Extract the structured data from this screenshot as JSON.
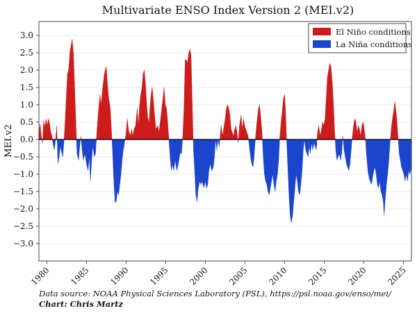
{
  "chart_data": {
    "type": "area",
    "title": "Multivariate ENSO Index Version 2 (MEI.v2)",
    "ylabel": "MEI.v2",
    "xlabel": "",
    "xlim": [
      1979,
      2026
    ],
    "ylim": [
      -3.5,
      3.4
    ],
    "yticks": [
      3.0,
      2.5,
      2.0,
      1.5,
      1.0,
      0.5,
      0.0,
      -0.5,
      -1.0,
      -1.5,
      -2.0,
      -2.5,
      -3.0
    ],
    "ytick_labels": [
      "3.0",
      "2.5",
      "2.0",
      "1.5",
      "1.0",
      "0.5",
      "0.0",
      "−0.5",
      "−1.0",
      "−1.5",
      "−2.0",
      "−2.5",
      "−3.0"
    ],
    "xticks": [
      1980,
      1985,
      1990,
      1995,
      2000,
      2005,
      2010,
      2015,
      2020,
      2025
    ],
    "xtick_labels": [
      "1980",
      "1985",
      "1990",
      "1995",
      "2000",
      "2005",
      "2010",
      "2015",
      "2020",
      "2025"
    ],
    "grid": "horizontal",
    "legend_position": "top-right",
    "series": [
      {
        "name": "El Niño conditions",
        "color": "#cc1c1c"
      },
      {
        "name": "La Niña conditions",
        "color": "#1b45cc"
      }
    ],
    "points": [
      [
        1979.0,
        0.2
      ],
      [
        1979.15,
        0.45
      ],
      [
        1979.3,
        0.1
      ],
      [
        1979.45,
        -0.1
      ],
      [
        1979.6,
        0.55
      ],
      [
        1979.75,
        0.35
      ],
      [
        1979.9,
        0.6
      ],
      [
        1980.05,
        0.4
      ],
      [
        1980.2,
        0.6
      ],
      [
        1980.35,
        0.45
      ],
      [
        1980.5,
        0.2
      ],
      [
        1980.65,
        0.1
      ],
      [
        1980.8,
        -0.15
      ],
      [
        1980.95,
        -0.3
      ],
      [
        1981.1,
        0.0
      ],
      [
        1981.25,
        0.4
      ],
      [
        1981.4,
        -0.7
      ],
      [
        1981.55,
        -0.5
      ],
      [
        1981.7,
        -0.2
      ],
      [
        1981.85,
        -0.35
      ],
      [
        1982.0,
        -0.5
      ],
      [
        1982.15,
        -0.1
      ],
      [
        1982.3,
        0.5
      ],
      [
        1982.45,
        1.2
      ],
      [
        1982.6,
        1.9
      ],
      [
        1982.75,
        2.0
      ],
      [
        1982.9,
        2.5
      ],
      [
        1983.05,
        2.7
      ],
      [
        1983.2,
        2.9
      ],
      [
        1983.35,
        2.5
      ],
      [
        1983.5,
        1.6
      ],
      [
        1983.65,
        0.6
      ],
      [
        1983.8,
        -0.4
      ],
      [
        1984.0,
        -0.6
      ],
      [
        1984.15,
        -0.2
      ],
      [
        1984.3,
        0.1
      ],
      [
        1984.45,
        -0.3
      ],
      [
        1984.6,
        -0.6
      ],
      [
        1984.8,
        -0.4
      ],
      [
        1985.0,
        -0.7
      ],
      [
        1985.2,
        -0.9
      ],
      [
        1985.35,
        -0.5
      ],
      [
        1985.5,
        -1.2
      ],
      [
        1985.65,
        -0.6
      ],
      [
        1985.8,
        -0.2
      ],
      [
        1986.0,
        -0.5
      ],
      [
        1986.15,
        -0.4
      ],
      [
        1986.3,
        0.2
      ],
      [
        1986.5,
        0.8
      ],
      [
        1986.7,
        1.3
      ],
      [
        1986.85,
        1.0
      ],
      [
        1987.0,
        1.4
      ],
      [
        1987.2,
        1.8
      ],
      [
        1987.35,
        2.0
      ],
      [
        1987.5,
        2.1
      ],
      [
        1987.65,
        1.6
      ],
      [
        1987.8,
        1.2
      ],
      [
        1988.0,
        0.9
      ],
      [
        1988.15,
        0.3
      ],
      [
        1988.3,
        -0.4
      ],
      [
        1988.45,
        -1.2
      ],
      [
        1988.6,
        -1.8
      ],
      [
        1988.75,
        -1.8
      ],
      [
        1988.9,
        -1.5
      ],
      [
        1989.05,
        -1.6
      ],
      [
        1989.2,
        -1.3
      ],
      [
        1989.35,
        -1.0
      ],
      [
        1989.5,
        -0.6
      ],
      [
        1989.65,
        -0.3
      ],
      [
        1989.8,
        -0.1
      ],
      [
        1990.0,
        0.2
      ],
      [
        1990.15,
        0.6
      ],
      [
        1990.3,
        0.3
      ],
      [
        1990.5,
        0.1
      ],
      [
        1990.7,
        0.3
      ],
      [
        1990.85,
        0.1
      ],
      [
        1991.0,
        0.3
      ],
      [
        1991.2,
        0.4
      ],
      [
        1991.4,
        0.9
      ],
      [
        1991.55,
        0.4
      ],
      [
        1991.7,
        1.0
      ],
      [
        1991.85,
        1.3
      ],
      [
        1992.0,
        1.5
      ],
      [
        1992.15,
        1.9
      ],
      [
        1992.3,
        2.0
      ],
      [
        1992.45,
        1.6
      ],
      [
        1992.6,
        1.0
      ],
      [
        1992.75,
        0.6
      ],
      [
        1992.9,
        0.5
      ],
      [
        1993.0,
        0.9
      ],
      [
        1993.15,
        1.3
      ],
      [
        1993.3,
        1.5
      ],
      [
        1993.45,
        1.1
      ],
      [
        1993.6,
        0.7
      ],
      [
        1993.75,
        0.3
      ],
      [
        1994.0,
        0.4
      ],
      [
        1994.15,
        0.2
      ],
      [
        1994.3,
        0.5
      ],
      [
        1994.5,
        0.9
      ],
      [
        1994.65,
        1.2
      ],
      [
        1994.8,
        1.5
      ],
      [
        1994.95,
        1.0
      ],
      [
        1995.1,
        0.9
      ],
      [
        1995.25,
        0.5
      ],
      [
        1995.4,
        0.0
      ],
      [
        1995.55,
        -0.5
      ],
      [
        1995.7,
        -0.9
      ],
      [
        1995.85,
        -0.7
      ],
      [
        1996.0,
        -0.9
      ],
      [
        1996.2,
        -0.6
      ],
      [
        1996.4,
        -0.9
      ],
      [
        1996.6,
        -0.7
      ],
      [
        1996.8,
        -0.4
      ],
      [
        1997.0,
        -0.4
      ],
      [
        1997.15,
        0.1
      ],
      [
        1997.3,
        0.9
      ],
      [
        1997.45,
        2.3
      ],
      [
        1997.6,
        2.3
      ],
      [
        1997.75,
        2.2
      ],
      [
        1997.9,
        2.5
      ],
      [
        1998.05,
        2.6
      ],
      [
        1998.2,
        2.4
      ],
      [
        1998.35,
        1.0
      ],
      [
        1998.5,
        -0.3
      ],
      [
        1998.65,
        -0.9
      ],
      [
        1998.8,
        -1.6
      ],
      [
        1998.95,
        -1.8
      ],
      [
        1999.1,
        -1.4
      ],
      [
        1999.3,
        -1.2
      ],
      [
        1999.45,
        -1.3
      ],
      [
        1999.6,
        -1.2
      ],
      [
        1999.8,
        -1.4
      ],
      [
        2000.0,
        -1.2
      ],
      [
        2000.15,
        -1.4
      ],
      [
        2000.3,
        -1.3
      ],
      [
        2000.45,
        -0.9
      ],
      [
        2000.6,
        -0.7
      ],
      [
        2000.8,
        -0.9
      ],
      [
        2001.0,
        -0.8
      ],
      [
        2001.15,
        -0.5
      ],
      [
        2001.3,
        0.0
      ],
      [
        2001.45,
        -0.3
      ],
      [
        2001.6,
        0.0
      ],
      [
        2001.75,
        -0.2
      ],
      [
        2001.9,
        0.2
      ],
      [
        2002.0,
        0.4
      ],
      [
        2002.15,
        0.1
      ],
      [
        2002.3,
        0.3
      ],
      [
        2002.5,
        0.6
      ],
      [
        2002.65,
        0.9
      ],
      [
        2002.8,
        1.0
      ],
      [
        2002.95,
        0.9
      ],
      [
        2003.1,
        0.7
      ],
      [
        2003.25,
        0.3
      ],
      [
        2003.4,
        0.2
      ],
      [
        2003.55,
        0.1
      ],
      [
        2003.7,
        0.3
      ],
      [
        2003.85,
        0.4
      ],
      [
        2004.0,
        0.2
      ],
      [
        2004.15,
        -0.1
      ],
      [
        2004.3,
        0.4
      ],
      [
        2004.5,
        0.7
      ],
      [
        2004.65,
        0.3
      ],
      [
        2004.8,
        0.6
      ],
      [
        2004.95,
        0.4
      ],
      [
        2005.1,
        0.3
      ],
      [
        2005.25,
        0.2
      ],
      [
        2005.4,
        0.1
      ],
      [
        2005.55,
        -0.2
      ],
      [
        2005.7,
        -0.5
      ],
      [
        2005.85,
        -0.7
      ],
      [
        2006.0,
        -0.8
      ],
      [
        2006.15,
        -0.5
      ],
      [
        2006.3,
        0.0
      ],
      [
        2006.5,
        0.5
      ],
      [
        2006.7,
        0.9
      ],
      [
        2006.85,
        1.0
      ],
      [
        2007.0,
        0.6
      ],
      [
        2007.15,
        0.2
      ],
      [
        2007.3,
        -0.5
      ],
      [
        2007.45,
        -1.0
      ],
      [
        2007.6,
        -1.2
      ],
      [
        2007.75,
        -1.3
      ],
      [
        2007.9,
        -1.5
      ],
      [
        2008.05,
        -1.6
      ],
      [
        2008.2,
        -1.4
      ],
      [
        2008.35,
        -1.2
      ],
      [
        2008.5,
        -1.0
      ],
      [
        2008.65,
        -1.3
      ],
      [
        2008.8,
        -1.5
      ],
      [
        2008.95,
        -1.2
      ],
      [
        2009.1,
        -1.0
      ],
      [
        2009.25,
        -0.6
      ],
      [
        2009.4,
        0.1
      ],
      [
        2009.55,
        0.5
      ],
      [
        2009.7,
        0.8
      ],
      [
        2009.85,
        1.2
      ],
      [
        2010.0,
        1.3
      ],
      [
        2010.1,
        0.9
      ],
      [
        2010.25,
        0.0
      ],
      [
        2010.4,
        -0.8
      ],
      [
        2010.55,
        -1.6
      ],
      [
        2010.7,
        -2.2
      ],
      [
        2010.85,
        -2.4
      ],
      [
        2011.0,
        -2.2
      ],
      [
        2011.15,
        -1.8
      ],
      [
        2011.3,
        -1.4
      ],
      [
        2011.45,
        -1.0
      ],
      [
        2011.6,
        -1.2
      ],
      [
        2011.75,
        -1.5
      ],
      [
        2011.9,
        -1.6
      ],
      [
        2012.05,
        -1.3
      ],
      [
        2012.2,
        -0.9
      ],
      [
        2012.35,
        -0.3
      ],
      [
        2012.5,
        0.0
      ],
      [
        2012.65,
        -0.3
      ],
      [
        2012.8,
        -0.4
      ],
      [
        2012.95,
        -0.5
      ],
      [
        2013.1,
        -0.2
      ],
      [
        2013.25,
        -0.4
      ],
      [
        2013.4,
        -0.1
      ],
      [
        2013.55,
        -0.3
      ],
      [
        2013.7,
        -0.1
      ],
      [
        2013.85,
        -0.2
      ],
      [
        2014.0,
        -0.3
      ],
      [
        2014.15,
        0.2
      ],
      [
        2014.3,
        0.4
      ],
      [
        2014.5,
        0.1
      ],
      [
        2014.65,
        0.3
      ],
      [
        2014.8,
        0.5
      ],
      [
        2014.95,
        0.4
      ],
      [
        2015.1,
        0.6
      ],
      [
        2015.25,
        1.2
      ],
      [
        2015.4,
        1.8
      ],
      [
        2015.55,
        2.0
      ],
      [
        2015.7,
        2.2
      ],
      [
        2015.85,
        2.1
      ],
      [
        2016.0,
        1.7
      ],
      [
        2016.15,
        1.1
      ],
      [
        2016.3,
        0.3
      ],
      [
        2016.45,
        -0.3
      ],
      [
        2016.6,
        -0.6
      ],
      [
        2016.75,
        -0.5
      ],
      [
        2016.9,
        -0.4
      ],
      [
        2017.05,
        -0.6
      ],
      [
        2017.2,
        -0.4
      ],
      [
        2017.35,
        0.1
      ],
      [
        2017.5,
        -0.3
      ],
      [
        2017.65,
        -0.5
      ],
      [
        2017.8,
        -0.7
      ],
      [
        2017.95,
        -0.8
      ],
      [
        2018.1,
        -0.9
      ],
      [
        2018.25,
        -0.7
      ],
      [
        2018.4,
        -0.3
      ],
      [
        2018.55,
        0.1
      ],
      [
        2018.7,
        0.4
      ],
      [
        2018.85,
        0.6
      ],
      [
        2019.0,
        0.5
      ],
      [
        2019.15,
        0.2
      ],
      [
        2019.3,
        0.4
      ],
      [
        2019.45,
        0.3
      ],
      [
        2019.6,
        0.1
      ],
      [
        2019.75,
        0.4
      ],
      [
        2019.9,
        0.5
      ],
      [
        2020.05,
        0.3
      ],
      [
        2020.2,
        0.0
      ],
      [
        2020.35,
        -0.5
      ],
      [
        2020.5,
        -0.9
      ],
      [
        2020.65,
        -1.1
      ],
      [
        2020.8,
        -1.2
      ],
      [
        2020.95,
        -1.3
      ],
      [
        2021.1,
        -1.1
      ],
      [
        2021.25,
        -0.9
      ],
      [
        2021.4,
        -0.8
      ],
      [
        2021.55,
        -1.0
      ],
      [
        2021.7,
        -1.3
      ],
      [
        2021.85,
        -1.4
      ],
      [
        2022.0,
        -1.2
      ],
      [
        2022.15,
        -1.5
      ],
      [
        2022.3,
        -1.6
      ],
      [
        2022.45,
        -1.8
      ],
      [
        2022.55,
        -2.2
      ],
      [
        2022.7,
        -1.7
      ],
      [
        2022.85,
        -1.3
      ],
      [
        2023.0,
        -1.0
      ],
      [
        2023.15,
        -0.6
      ],
      [
        2023.3,
        -0.1
      ],
      [
        2023.45,
        0.3
      ],
      [
        2023.6,
        0.6
      ],
      [
        2023.75,
        0.8
      ],
      [
        2023.9,
        1.1
      ],
      [
        2024.0,
        0.9
      ],
      [
        2024.15,
        0.6
      ],
      [
        2024.3,
        0.1
      ],
      [
        2024.45,
        -0.4
      ],
      [
        2024.6,
        -0.6
      ],
      [
        2024.75,
        -0.8
      ],
      [
        2024.9,
        -0.9
      ],
      [
        2025.05,
        -1.0
      ],
      [
        2025.2,
        -1.2
      ],
      [
        2025.35,
        -1.0
      ],
      [
        2025.5,
        -1.2
      ],
      [
        2025.65,
        -0.9
      ],
      [
        2025.8,
        -1.0
      ],
      [
        2026.0,
        -0.8
      ]
    ]
  },
  "footer": {
    "source": "Data source: NOAA Physical Sciences Laboratory (PSL), https://psl.noaa.gov/enso/mei/",
    "credit": "Chart: Chris Martz"
  }
}
